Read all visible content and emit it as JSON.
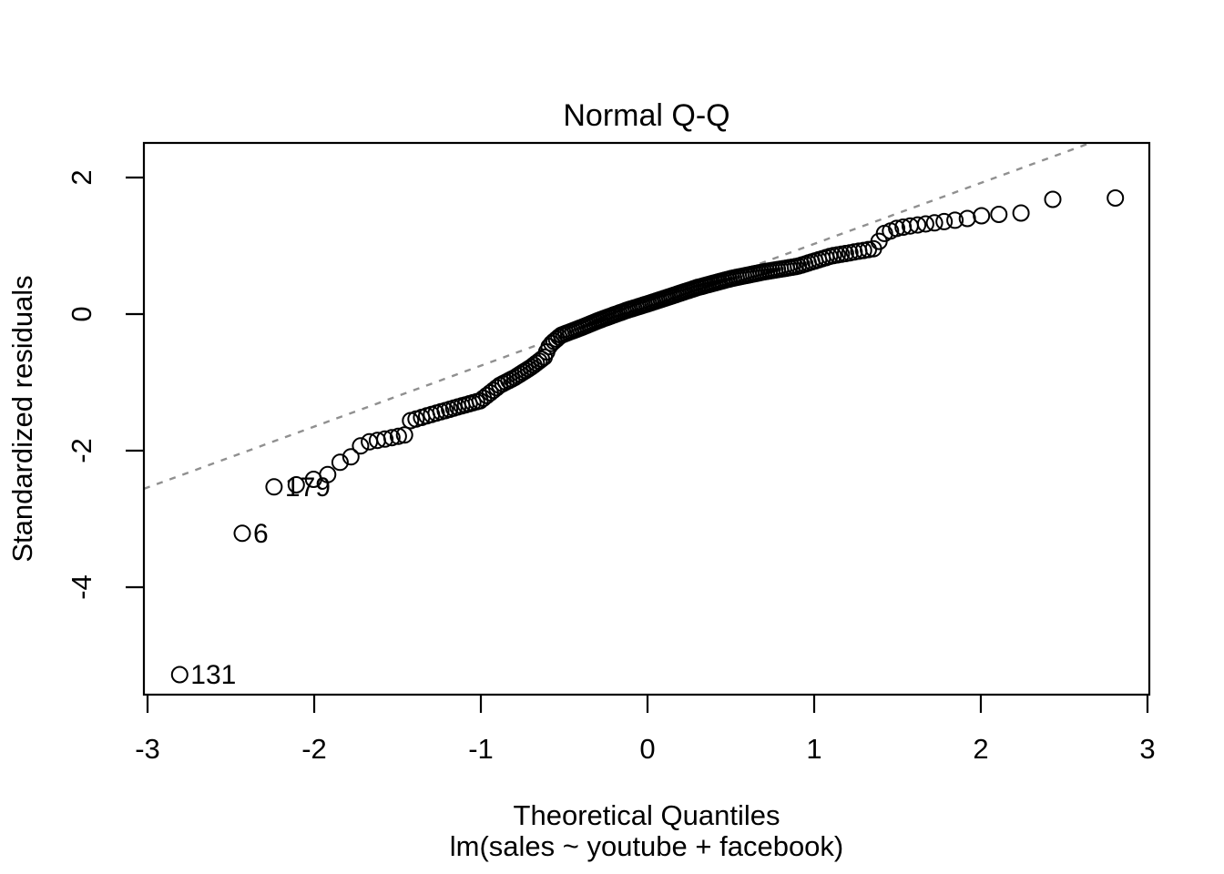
{
  "chart_data": {
    "type": "scatter",
    "variant": "normal-qq-plot",
    "title": "Normal Q-Q",
    "xlabel": "Theoretical Quantiles",
    "xlabel_sub": "lm(sales ~ youtube + facebook)",
    "ylabel": "Standardized residuals",
    "xlim": [
      -3.022,
      3.011
    ],
    "ylim": [
      -5.573,
      2.507
    ],
    "x_ticks": [
      -3,
      -2,
      -1,
      0,
      1,
      2,
      3
    ],
    "x_tick_labels": [
      "-3",
      "-2",
      "-1",
      "0",
      "1",
      "2",
      "3"
    ],
    "y_ticks": [
      2,
      0,
      -2,
      -4
    ],
    "y_tick_labels": [
      "2",
      "0",
      "-2",
      "-4"
    ],
    "grid": false,
    "n_points": 200,
    "marker": {
      "shape": "open-circle",
      "radius_px": 8.5,
      "stroke_px": 2,
      "color": "#000000"
    },
    "point_color": "#000000",
    "background_color": "#ffffff",
    "box_color": "#000000",
    "reference_line": {
      "slope": 0.892,
      "intercept": 0.137,
      "style": "dotted",
      "color": "#909090"
    },
    "labeled_outliers": [
      {
        "label": "131",
        "x": -2.807,
        "y": -5.28
      },
      {
        "label": "6",
        "x": -2.432,
        "y": -3.21
      },
      {
        "label": "179",
        "x": -2.241,
        "y": -2.53
      }
    ],
    "theoretical_quantiles_negative_half": [
      -2.807,
      -2.432,
      -2.241,
      -2.108,
      -2.004,
      -1.919,
      -1.845,
      -1.78,
      -1.722,
      -1.669,
      -1.621,
      -1.576,
      -1.534,
      -1.495,
      -1.458,
      -1.422,
      -1.389,
      -1.356,
      -1.325,
      -1.296,
      -1.268,
      -1.24,
      -1.214,
      -1.188,
      -1.163,
      -1.139,
      -1.115,
      -1.092,
      -1.07,
      -1.048,
      -1.026,
      -1.005,
      -0.985,
      -0.964,
      -0.944,
      -0.925,
      -0.905,
      -0.887,
      -0.868,
      -0.85,
      -0.832,
      -0.815,
      -0.797,
      -0.78,
      -0.764,
      -0.747,
      -0.731,
      -0.714,
      -0.698,
      -0.682,
      -0.667,
      -0.651,
      -0.636,
      -0.62,
      -0.605,
      -0.59,
      -0.575,
      -0.561,
      -0.546,
      -0.532,
      -0.517,
      -0.503,
      -0.489,
      -0.475,
      -0.461,
      -0.447,
      -0.433,
      -0.42,
      -0.406,
      -0.392,
      -0.379,
      -0.365,
      -0.352,
      -0.339,
      -0.325,
      -0.312,
      -0.299,
      -0.286,
      -0.273,
      -0.26,
      -0.247,
      -0.234,
      -0.221,
      -0.208,
      -0.196,
      -0.183,
      -0.17,
      -0.157,
      -0.145,
      -0.132,
      -0.119,
      -0.107,
      -0.094,
      -0.082,
      -0.069,
      -0.056,
      -0.044,
      -0.031,
      -0.019,
      -0.006
    ],
    "mirror_positive_half": true,
    "sample_quantile_curve_anchors": [
      [
        -2.807,
        -5.28
      ],
      [
        -2.432,
        -3.21
      ],
      [
        -2.241,
        -2.53
      ],
      [
        -2.108,
        -2.5
      ],
      [
        -2.004,
        -2.42
      ],
      [
        -1.919,
        -2.35
      ],
      [
        -1.845,
        -2.17
      ],
      [
        -1.78,
        -2.09
      ],
      [
        -1.722,
        -1.93
      ],
      [
        -1.669,
        -1.87
      ],
      [
        -1.576,
        -1.83
      ],
      [
        -1.458,
        -1.77
      ],
      [
        -1.422,
        -1.56
      ],
      [
        -1.296,
        -1.47
      ],
      [
        -1.139,
        -1.36
      ],
      [
        -1.005,
        -1.27
      ],
      [
        -0.885,
        -1.04
      ],
      [
        -0.798,
        -0.93
      ],
      [
        -0.7,
        -0.78
      ],
      [
        -0.62,
        -0.63
      ],
      [
        -0.585,
        -0.45
      ],
      [
        -0.52,
        -0.31
      ],
      [
        -0.4,
        -0.2
      ],
      [
        -0.28,
        -0.08
      ],
      [
        -0.12,
        0.06
      ],
      [
        0.0,
        0.15
      ],
      [
        0.15,
        0.27
      ],
      [
        0.3,
        0.39
      ],
      [
        0.5,
        0.52
      ],
      [
        0.7,
        0.62
      ],
      [
        0.9,
        0.7
      ],
      [
        1.1,
        0.85
      ],
      [
        1.36,
        0.96
      ],
      [
        1.42,
        1.18
      ],
      [
        1.5,
        1.26
      ],
      [
        1.6,
        1.3
      ],
      [
        1.7,
        1.33
      ],
      [
        1.83,
        1.37
      ],
      [
        1.919,
        1.4
      ],
      [
        2.004,
        1.44
      ],
      [
        2.108,
        1.46
      ],
      [
        2.241,
        1.48
      ],
      [
        2.432,
        1.68
      ],
      [
        2.807,
        1.7
      ]
    ]
  }
}
